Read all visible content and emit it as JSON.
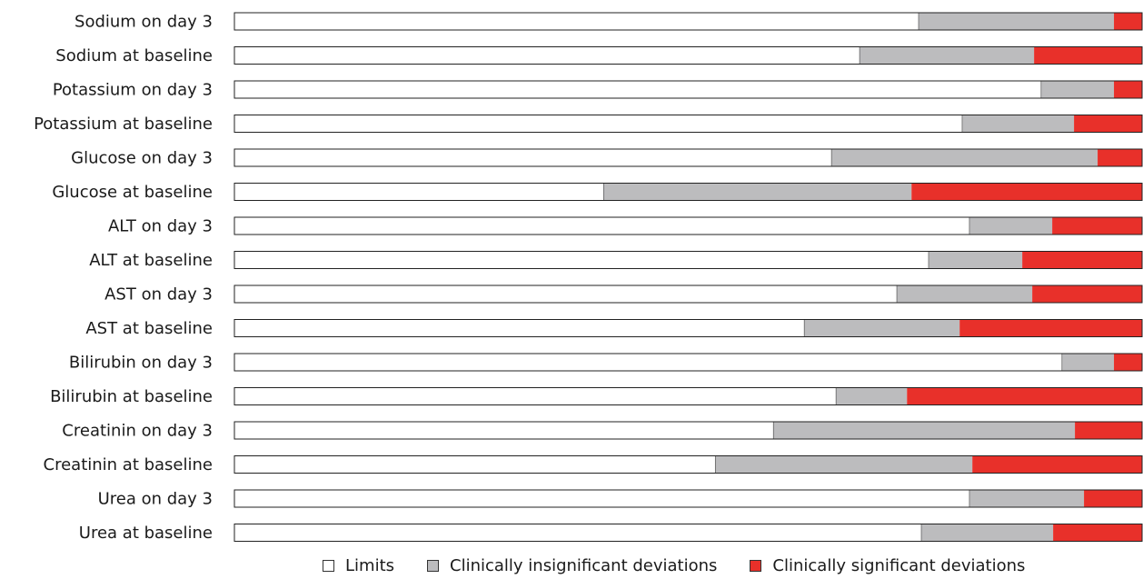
{
  "chart_data": {
    "type": "bar",
    "stacked": true,
    "normalized": true,
    "orientation": "horizontal",
    "categories": [
      "Sodium on day 3",
      "Sodium at baseline",
      "Potassium on day 3",
      "Potassium at baseline",
      "Glucose on day 3",
      "Glucose at baseline",
      "ALT on day 3",
      "ALT at baseline",
      "AST on day 3",
      "AST at baseline",
      "Bilirubin on day 3",
      "Bilirubin at baseline",
      "Creatinin on day 3",
      "Creatinin at baseline",
      "Urea on day 3",
      "Urea at baseline"
    ],
    "series": [
      {
        "name": "Limits",
        "color": "#ffffff",
        "values": [
          75.4,
          68.9,
          88.9,
          80.2,
          65.8,
          40.7,
          81.0,
          76.5,
          73.0,
          62.8,
          91.2,
          66.3,
          59.4,
          53.0,
          81.0,
          75.7
        ]
      },
      {
        "name": "Clinically insignificant deviations",
        "color": "#bcbcbe",
        "values": [
          21.5,
          19.2,
          8.0,
          12.3,
          29.3,
          33.9,
          9.1,
          10.3,
          14.9,
          17.1,
          5.7,
          7.8,
          33.2,
          28.3,
          12.6,
          14.5
        ]
      },
      {
        "name": "Clinically significant deviations",
        "color": "#e8302a",
        "values": [
          3.1,
          11.9,
          3.1,
          7.5,
          4.9,
          25.4,
          9.9,
          13.2,
          12.1,
          20.1,
          3.1,
          25.9,
          7.4,
          18.7,
          6.4,
          9.8
        ]
      }
    ],
    "legend_position": "bottom",
    "grid": false
  }
}
